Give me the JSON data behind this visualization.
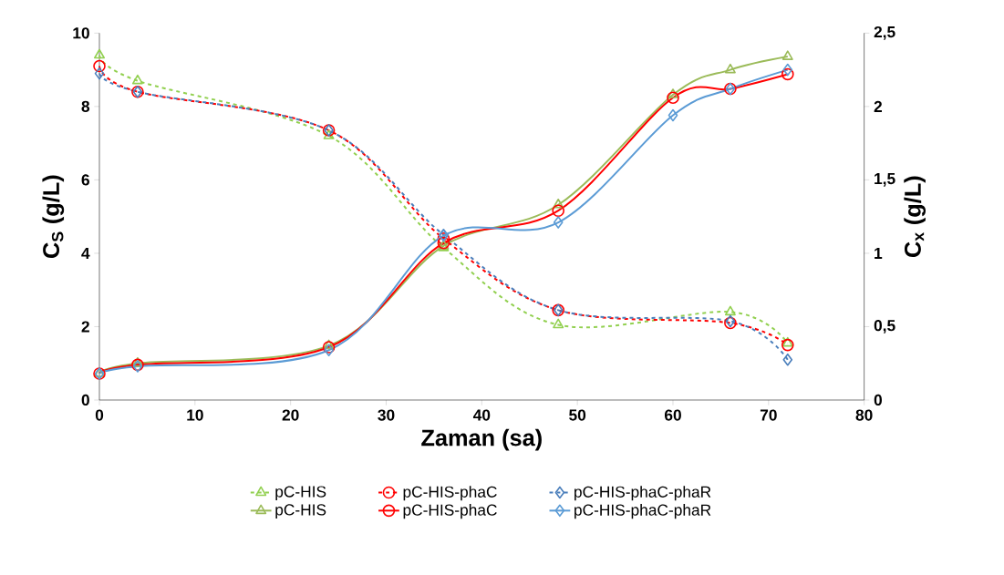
{
  "chart_data": {
    "type": "line",
    "xlabel": "Zaman (sa)",
    "ylabel": "C$_{S}$ (g/L)",
    "y2label": "C$_{x}$ (g/L)",
    "x": [
      0,
      4,
      24,
      36,
      48,
      60,
      66,
      72
    ],
    "xlim": [
      0,
      80
    ],
    "xticks": [
      0,
      10,
      20,
      30,
      40,
      50,
      60,
      70,
      80
    ],
    "ylim": [
      0,
      10
    ],
    "yticks": [
      0,
      2,
      4,
      6,
      8,
      10
    ],
    "y2lim": [
      0,
      2.5
    ],
    "y2ticks": [
      0,
      {
        "value": 0.5,
        "label": "0,5"
      },
      1,
      {
        "value": 1.5,
        "label": "1,5"
      },
      2,
      {
        "value": 2.5,
        "label": "2,5"
      }
    ],
    "grid": false,
    "legend": "bottom",
    "series": [
      {
        "name": "pC-HIS",
        "color": "#92d050",
        "marker": "triangle",
        "line_style": "dashed",
        "x": [
          0,
          4,
          24,
          36,
          48,
          66,
          72
        ],
        "values": [
          9.4,
          8.7,
          7.2,
          4.15,
          2.05,
          2.4,
          1.55
        ]
      },
      {
        "name": "pC-HIS-phaC",
        "color": "#ff0000",
        "marker": "circle",
        "line_style": "dashed",
        "x": [
          0,
          4,
          24,
          36,
          48,
          66,
          72
        ],
        "values": [
          9.1,
          8.4,
          7.35,
          4.4,
          2.45,
          2.1,
          1.5
        ]
      },
      {
        "name": "pC-HIS-phaC-phaR",
        "color": "#4a7ebb",
        "marker": "diamond",
        "line_style": "dashed",
        "x": [
          0,
          4,
          24,
          36,
          48,
          66,
          72
        ],
        "values": [
          8.9,
          8.4,
          7.35,
          4.5,
          2.45,
          2.15,
          1.1
        ]
      },
      {
        "name": "pC-HIS",
        "color": "#9bbb59",
        "marker": "triangle",
        "line_style": "solid",
        "axis": "y2",
        "values": [
          0.18,
          0.25,
          0.37,
          1.05,
          1.33,
          2.08,
          2.25,
          2.34
        ]
      },
      {
        "name": "pC-HIS-phaC",
        "color": "#ff0000",
        "marker": "circle",
        "line_style": "solid",
        "axis": "y2",
        "values": [
          0.18,
          0.24,
          0.36,
          1.07,
          1.29,
          2.06,
          2.12,
          2.22
        ]
      },
      {
        "name": "pC-HIS-phaC-phaR",
        "color": "#5b9bd5",
        "marker": "diamond",
        "line_style": "solid",
        "axis": "y2",
        "values": [
          0.18,
          0.23,
          0.34,
          1.12,
          1.21,
          1.94,
          2.12,
          2.25
        ]
      }
    ]
  }
}
